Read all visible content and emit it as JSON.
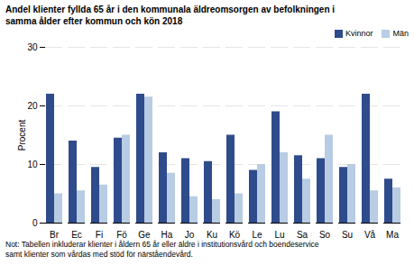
{
  "chart_data": {
    "type": "bar",
    "title": "Andel klienter fyllda 65 år i den kommunala äldreomsorgen av befolkningen i\nsamma ålder efter kommun och kön 2018",
    "ylabel": "Procent",
    "categories": [
      "Br",
      "Ec",
      "Fi",
      "Fö",
      "Ge",
      "Ha",
      "Jo",
      "Ku",
      "Kö",
      "Le",
      "Lu",
      "Sa",
      "So",
      "Su",
      "Vå",
      "Ma"
    ],
    "series": [
      {
        "name": "Kvinnor",
        "color": "#2E4B8C",
        "values": [
          22,
          14,
          9.5,
          14.5,
          22,
          12,
          11,
          10.5,
          15,
          9,
          19,
          11.5,
          11,
          9.5,
          22,
          7.5
        ]
      },
      {
        "name": "Män",
        "color": "#B8CCE4",
        "values": [
          5,
          5.5,
          6.5,
          15,
          21.5,
          8.5,
          4.5,
          4,
          5,
          10,
          12,
          7.5,
          15,
          10,
          5.5,
          6
        ]
      }
    ],
    "ylim": [
      0,
      30
    ],
    "yticks": [
      0,
      10,
      20,
      30
    ],
    "grid": true,
    "legend": "upper right",
    "annotations": [
      "Not: Tabellen inkluderar klienter i åldern 65 år eller äldre i institutionsvård och boendeservice\nsamt klienter som vårdas med stöd för närståendevård."
    ]
  }
}
